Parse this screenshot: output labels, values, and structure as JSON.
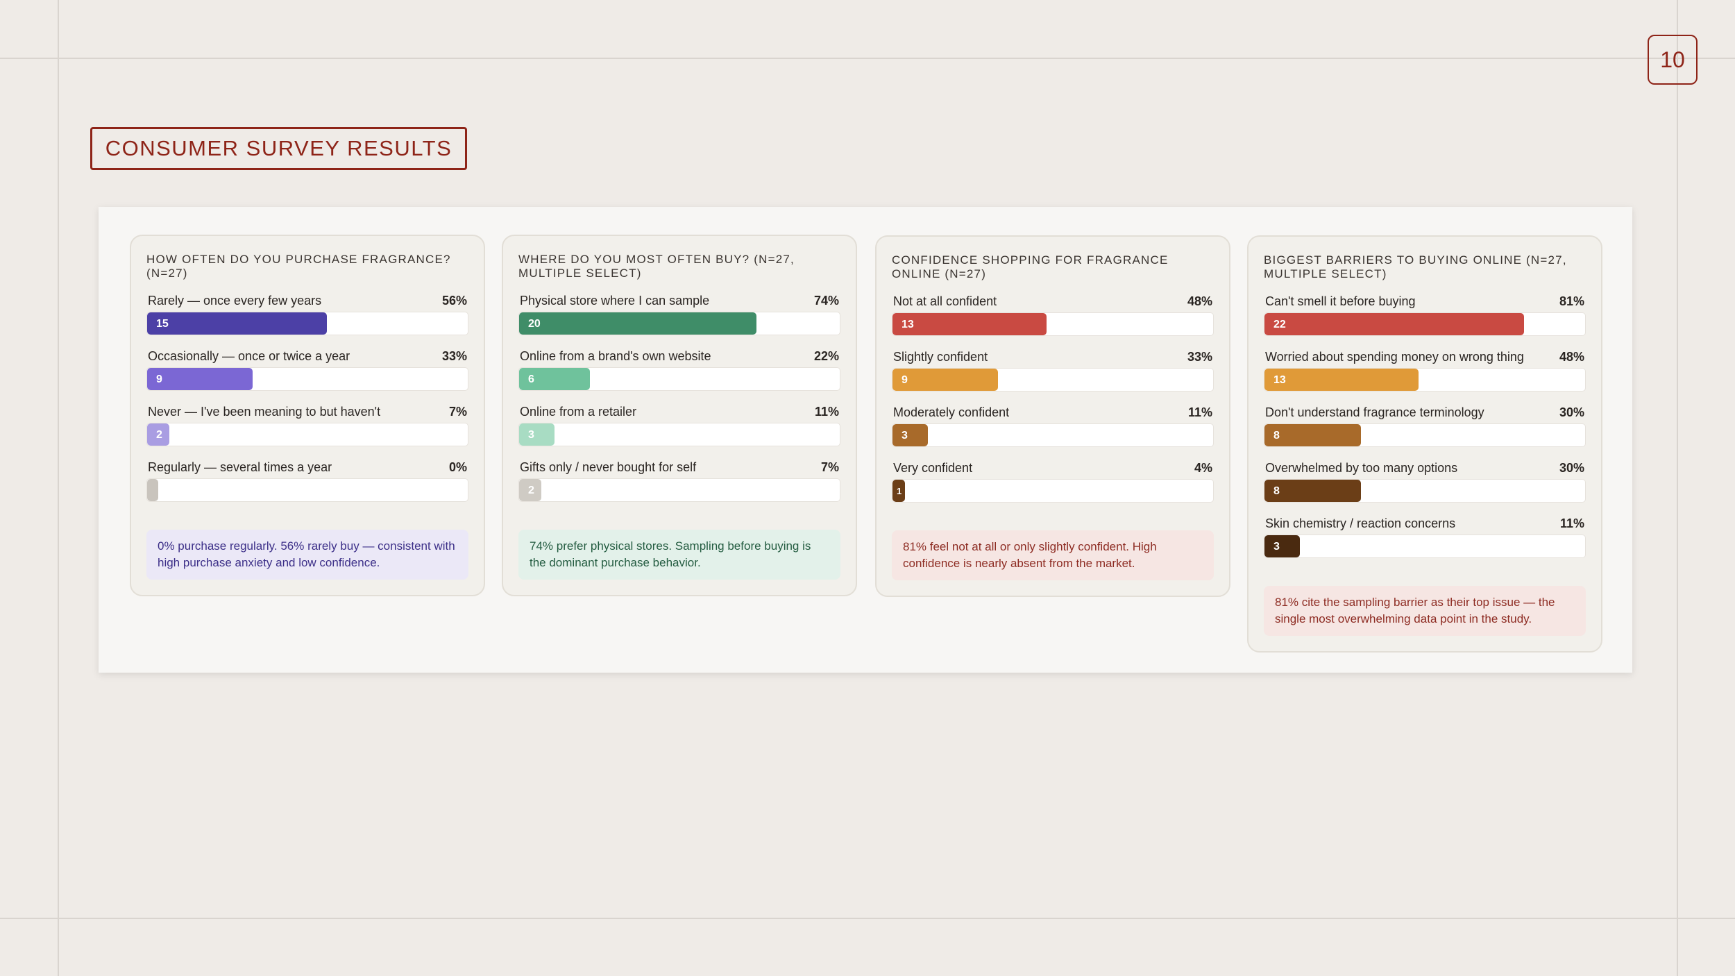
{
  "page_number": "10",
  "section_title": "CONSUMER SURVEY RESULTS",
  "chart_data": [
    {
      "type": "bar",
      "orientation": "horizontal",
      "title": "HOW OFTEN DO YOU PURCHASE FRAGRANCE? (N=27)",
      "categories": [
        "Rarely — once every few years",
        "Occasionally — once or twice a year",
        "Never — I've been meaning to but haven't",
        "Regularly — several times a year"
      ],
      "counts": [
        15,
        9,
        2,
        0
      ],
      "percent_labels": [
        "56%",
        "33%",
        "7%",
        "0%"
      ],
      "percent": [
        56,
        33,
        7,
        0
      ],
      "colors": [
        "#4c40a6",
        "#7b67d4",
        "#a99de2",
        "#c9c4bd"
      ],
      "note": "0% purchase regularly. 56% rarely buy — consistent with high purchase anxiety and low confidence.",
      "note_bg": "#ebe8f7",
      "note_color": "#3c2f88"
    },
    {
      "type": "bar",
      "orientation": "horizontal",
      "title": "WHERE DO YOU MOST OFTEN BUY? (N=27, MULTIPLE SELECT)",
      "categories": [
        "Physical store where I can sample",
        "Online from a brand's own website",
        "Online from a retailer",
        "Gifts only / never bought for self"
      ],
      "counts": [
        20,
        6,
        3,
        2
      ],
      "percent_labels": [
        "74%",
        "22%",
        "11%",
        "7%"
      ],
      "percent": [
        74,
        22,
        11,
        7
      ],
      "colors": [
        "#3f8d68",
        "#6fc29c",
        "#a8dcc3",
        "#cfcbc4"
      ],
      "note": "74% prefer physical stores. Sampling before buying is the dominant purchase behavior.",
      "note_bg": "#e3f1ea",
      "note_color": "#245c41"
    },
    {
      "type": "bar",
      "orientation": "horizontal",
      "title": "CONFIDENCE SHOPPING FOR FRAGRANCE ONLINE (N=27)",
      "categories": [
        "Not at all confident",
        "Slightly confident",
        "Moderately confident",
        "Very confident"
      ],
      "counts": [
        13,
        9,
        3,
        1
      ],
      "percent_labels": [
        "48%",
        "33%",
        "11%",
        "4%"
      ],
      "percent": [
        48,
        33,
        11,
        4
      ],
      "colors": [
        "#c94a42",
        "#e09a38",
        "#a86a2a",
        "#6b3e17"
      ],
      "note": "81% feel not at all or only slightly confident. High confidence is nearly absent from the market.",
      "note_bg": "#f6e6e3",
      "note_color": "#8d2b22"
    },
    {
      "type": "bar",
      "orientation": "horizontal",
      "title": "BIGGEST BARRIERS TO BUYING ONLINE (N=27, MULTIPLE SELECT)",
      "categories": [
        "Can't smell it before buying",
        "Worried about spending money on wrong thing",
        "Don't understand fragrance terminology",
        "Overwhelmed by too many options",
        "Skin chemistry / reaction concerns"
      ],
      "counts": [
        22,
        13,
        8,
        8,
        3
      ],
      "percent_labels": [
        "81%",
        "48%",
        "30%",
        "30%",
        "11%"
      ],
      "percent": [
        81,
        48,
        30,
        30,
        11
      ],
      "colors": [
        "#c94a42",
        "#e09a38",
        "#a86a2a",
        "#6b3e17",
        "#4a2a10"
      ],
      "note": "81% cite the sampling barrier as their top issue — the single most overwhelming data point in the study.",
      "note_bg": "#f6e6e3",
      "note_color": "#8d2b22"
    }
  ]
}
